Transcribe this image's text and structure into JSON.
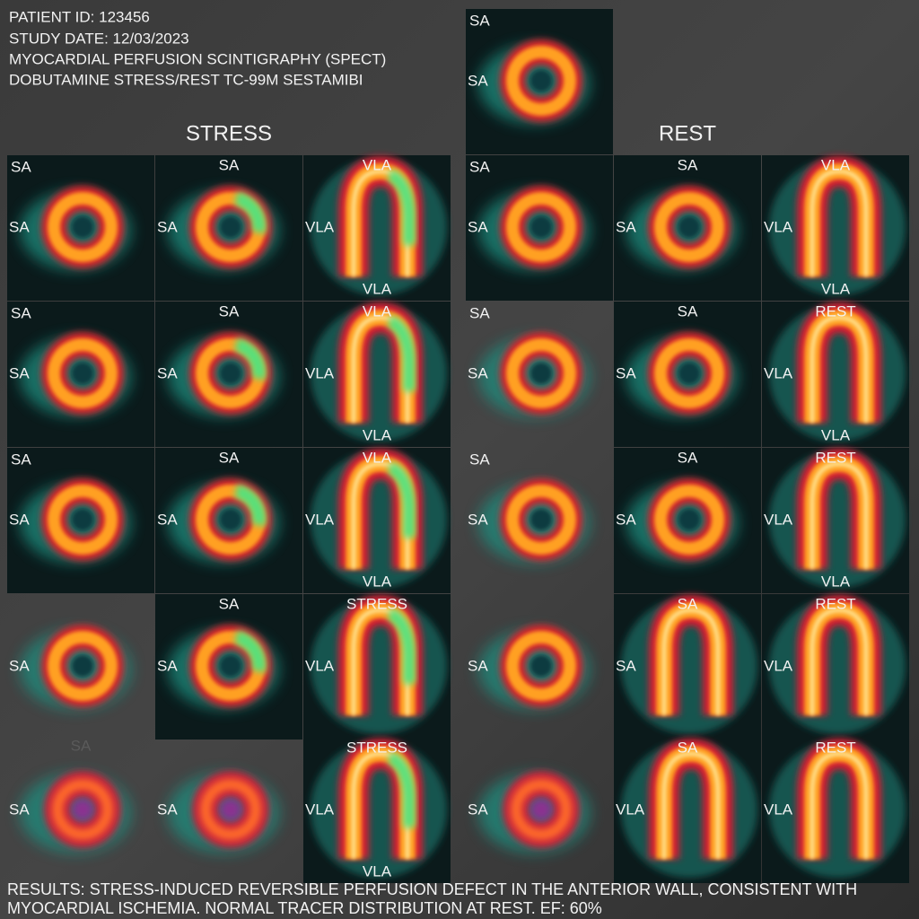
{
  "header": {
    "lines": [
      "PATIENT ID: 123456",
      "STUDY DATE: 12/03/2023",
      "MYOCARDIAL PERFUSION SCINTIGRAPHY (SPECT)",
      "DOBUTAMINE STRESS/REST TC-99M SESTAMIBI"
    ]
  },
  "top_panel": {
    "labels": [
      "SA",
      "SA"
    ]
  },
  "stress": {
    "title": "STRESS",
    "panels": [
      [
        "SA",
        "SA"
      ],
      [
        "SA",
        "SA"
      ],
      [
        "VLA",
        "VLA",
        "VLA"
      ],
      [
        "SA",
        "SA"
      ],
      [
        "SA",
        "SA"
      ],
      [
        "VLA",
        "VLA",
        "VLA"
      ],
      [
        "SA",
        "SA"
      ],
      [
        "SA",
        "SA"
      ],
      [
        "VLA",
        "VLA",
        "VLA"
      ],
      [
        "SA"
      ],
      [
        "SA",
        "SA"
      ],
      [
        "STRESS",
        "VLA"
      ],
      [
        "SA",
        "SA"
      ],
      [
        "SA"
      ],
      [
        "STRESS",
        "VLA",
        "VLA"
      ]
    ]
  },
  "rest": {
    "title": "REST",
    "panels": [
      [
        "SA",
        "SA"
      ],
      [
        "SA",
        "SA"
      ],
      [
        "VLA",
        "VLA",
        "VLA"
      ],
      [
        "SA",
        "SA"
      ],
      [
        "SA",
        "SA"
      ],
      [
        "REST",
        "VLA",
        "VLA"
      ],
      [
        "SA",
        "SA"
      ],
      [
        "SA",
        "SA"
      ],
      [
        "REST",
        "VLA",
        "VLA"
      ],
      [
        "SA"
      ],
      [
        "SA",
        "SA"
      ],
      [
        "REST",
        "VLA"
      ],
      [
        "SA"
      ],
      [
        "SA",
        "VLA"
      ],
      [
        "REST",
        "VLA"
      ]
    ]
  },
  "results": {
    "lines": [
      "RESULTS: STRESS-INDUCED REVERSIBLE PERFUSION DEFECT IN THE ANTERIOR WALL, CONSISTENT WITH",
      "MYOCARDIAL ISCHEMIA. NORMAL TRACER DISTRIBUTION AT REST. EF: 60%"
    ]
  }
}
